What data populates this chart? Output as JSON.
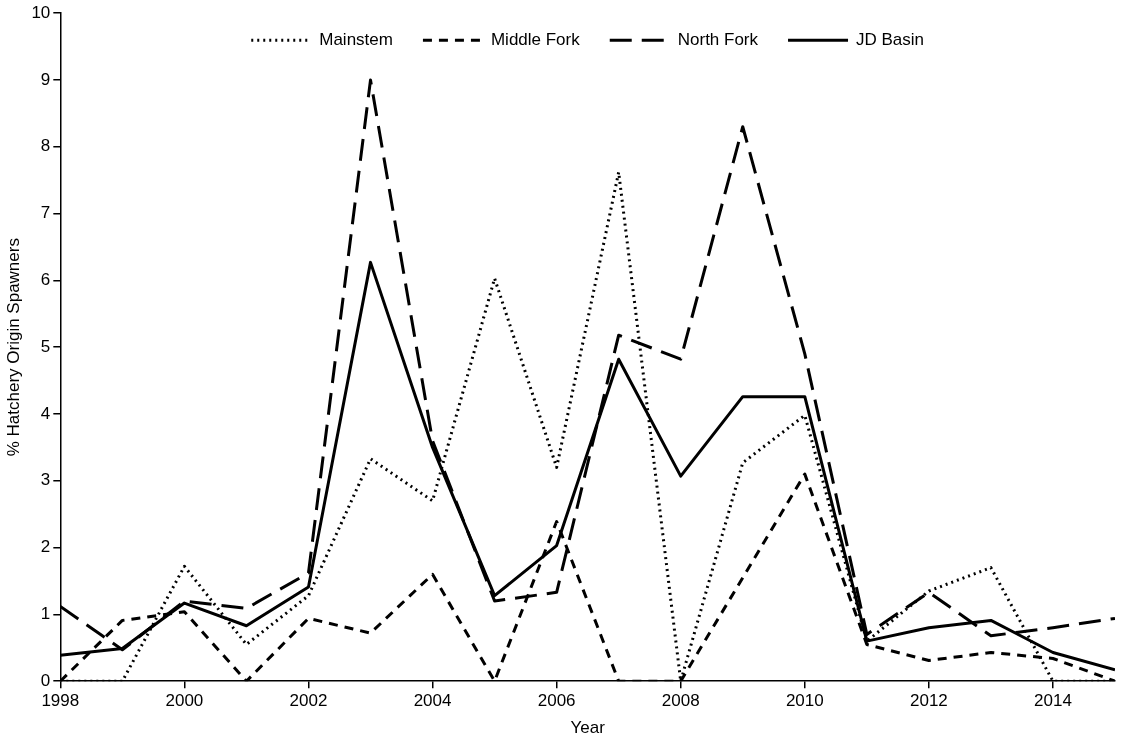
{
  "chart_data": {
    "type": "line",
    "xlabel": "Year",
    "ylabel": "% Hatchery Origin Spawners",
    "x": [
      1998,
      1999,
      2000,
      2001,
      2002,
      2003,
      2004,
      2005,
      2006,
      2007,
      2008,
      2009,
      2010,
      2011,
      2012,
      2013,
      2014,
      2015
    ],
    "series": [
      {
        "name": "Mainstem",
        "color": "#000000",
        "line_style": "dotted",
        "values": [
          0,
          0,
          1.72,
          0.55,
          1.28,
          3.33,
          2.7,
          6.03,
          3.2,
          7.62,
          0,
          3.27,
          3.98,
          0.6,
          1.35,
          1.7,
          0,
          0
        ]
      },
      {
        "name": "Middle Fork",
        "color": "#000000",
        "line_style": "dashed",
        "values": [
          0,
          0.91,
          1.04,
          0,
          0.94,
          0.72,
          1.6,
          0,
          2.39,
          0,
          0,
          1.55,
          3.1,
          0.55,
          0.31,
          0.43,
          0.34,
          0
        ]
      },
      {
        "name": "North Fork",
        "color": "#000000",
        "line_style": "dashed",
        "values": [
          1.12,
          0.47,
          1.2,
          1.09,
          1.62,
          9.0,
          3.6,
          1.2,
          1.33,
          5.18,
          4.82,
          8.3,
          4.9,
          0.7,
          1.33,
          0.68,
          0.8,
          0.94
        ]
      },
      {
        "name": "JD Basin",
        "color": "#000000",
        "line_style": "solid",
        "values": [
          0.39,
          0.49,
          1.17,
          0.83,
          1.41,
          6.27,
          3.5,
          1.28,
          2.03,
          4.82,
          3.07,
          4.26,
          4.26,
          0.6,
          0.8,
          0.91,
          0.43,
          0.17
        ]
      }
    ],
    "xlim": [
      1998,
      2015
    ],
    "xticks": [
      1998,
      2000,
      2002,
      2004,
      2006,
      2008,
      2010,
      2012,
      2014
    ],
    "ylim": [
      0,
      10
    ],
    "yticks": [
      0,
      1,
      2,
      3,
      4,
      5,
      6,
      7,
      8,
      9,
      10
    ],
    "grid": false,
    "legend": "top",
    "marker": "none"
  }
}
